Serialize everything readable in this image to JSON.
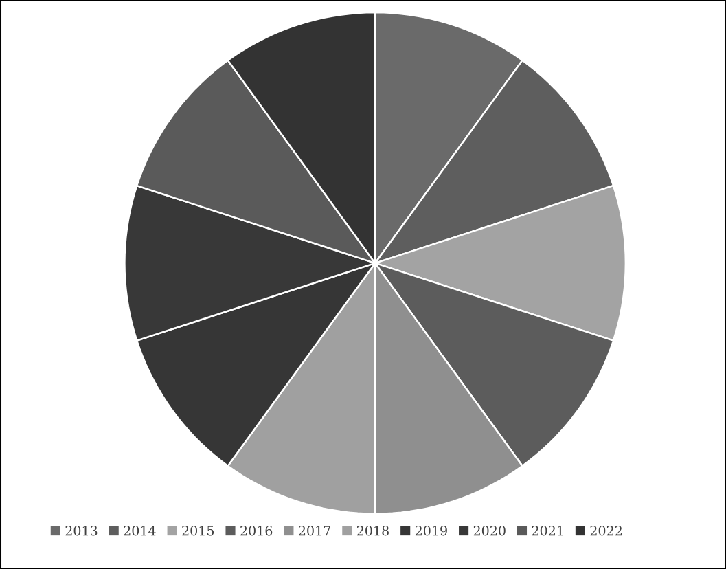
{
  "chart_data": {
    "type": "pie",
    "categories": [
      "2013",
      "2014",
      "2015",
      "2016",
      "2017",
      "2018",
      "2019",
      "2020",
      "2021",
      "2022"
    ],
    "values": [
      10,
      10,
      10,
      10,
      10,
      10,
      10,
      10,
      10,
      10
    ],
    "colors": [
      "#6a6a6a",
      "#5e5e5e",
      "#a3a3a3",
      "#5c5c5c",
      "#8f8f8f",
      "#a0a0a0",
      "#363636",
      "#383838",
      "#5a5a5a",
      "#333333"
    ],
    "legend": "bottom"
  }
}
